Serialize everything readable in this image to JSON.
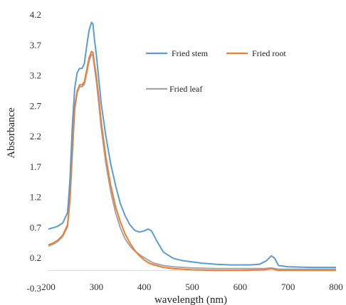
{
  "chart_data": {
    "type": "line",
    "title": "",
    "xlabel": "wavelength (nm)",
    "ylabel": "Absorbance",
    "xlim": [
      200,
      800
    ],
    "ylim": [
      -0.3,
      4.2
    ],
    "x_ticks": [
      200,
      300,
      400,
      500,
      600,
      700,
      800
    ],
    "y_ticks": [
      -0.3,
      0.2,
      0.7,
      1.2,
      1.7,
      2.2,
      2.7,
      3.2,
      3.7,
      4.2
    ],
    "x_tick_labels": [
      "200",
      "300",
      "400",
      "500",
      "600",
      "700",
      "800"
    ],
    "y_tick_labels": [
      "-0.3",
      "0.2",
      "0.7",
      "1.2",
      "1.7",
      "2.2",
      "2.7",
      "3.2",
      "3.7",
      "4.2"
    ],
    "grid": false,
    "legend_position": "top-right",
    "series": [
      {
        "name": "Fried stem",
        "color": "#5b9bd5",
        "points": [
          [
            200,
            0.68
          ],
          [
            210,
            0.7
          ],
          [
            220,
            0.73
          ],
          [
            230,
            0.78
          ],
          [
            240,
            0.95
          ],
          [
            245,
            1.5
          ],
          [
            250,
            2.4
          ],
          [
            255,
            3.0
          ],
          [
            260,
            3.25
          ],
          [
            265,
            3.32
          ],
          [
            270,
            3.32
          ],
          [
            275,
            3.4
          ],
          [
            280,
            3.7
          ],
          [
            285,
            3.95
          ],
          [
            290,
            4.08
          ],
          [
            293,
            4.05
          ],
          [
            296,
            3.8
          ],
          [
            300,
            3.55
          ],
          [
            305,
            3.15
          ],
          [
            310,
            2.75
          ],
          [
            320,
            2.2
          ],
          [
            330,
            1.75
          ],
          [
            340,
            1.4
          ],
          [
            350,
            1.1
          ],
          [
            360,
            0.9
          ],
          [
            370,
            0.75
          ],
          [
            380,
            0.66
          ],
          [
            390,
            0.63
          ],
          [
            400,
            0.65
          ],
          [
            408,
            0.68
          ],
          [
            415,
            0.65
          ],
          [
            425,
            0.5
          ],
          [
            440,
            0.3
          ],
          [
            460,
            0.2
          ],
          [
            480,
            0.16
          ],
          [
            500,
            0.14
          ],
          [
            520,
            0.12
          ],
          [
            550,
            0.1
          ],
          [
            580,
            0.09
          ],
          [
            600,
            0.09
          ],
          [
            620,
            0.09
          ],
          [
            640,
            0.1
          ],
          [
            655,
            0.16
          ],
          [
            665,
            0.24
          ],
          [
            672,
            0.2
          ],
          [
            680,
            0.08
          ],
          [
            700,
            0.06
          ],
          [
            750,
            0.05
          ],
          [
            800,
            0.05
          ]
        ]
      },
      {
        "name": "Fried root",
        "color": "#ed7d31",
        "points": [
          [
            200,
            0.42
          ],
          [
            210,
            0.45
          ],
          [
            220,
            0.5
          ],
          [
            230,
            0.58
          ],
          [
            240,
            0.75
          ],
          [
            245,
            1.2
          ],
          [
            250,
            2.0
          ],
          [
            255,
            2.7
          ],
          [
            260,
            2.95
          ],
          [
            265,
            3.05
          ],
          [
            270,
            3.05
          ],
          [
            275,
            3.1
          ],
          [
            280,
            3.3
          ],
          [
            285,
            3.5
          ],
          [
            290,
            3.6
          ],
          [
            293,
            3.58
          ],
          [
            296,
            3.4
          ],
          [
            300,
            3.2
          ],
          [
            305,
            2.85
          ],
          [
            310,
            2.45
          ],
          [
            320,
            1.85
          ],
          [
            330,
            1.4
          ],
          [
            340,
            1.05
          ],
          [
            350,
            0.8
          ],
          [
            360,
            0.6
          ],
          [
            370,
            0.45
          ],
          [
            380,
            0.33
          ],
          [
            390,
            0.24
          ],
          [
            400,
            0.17
          ],
          [
            410,
            0.12
          ],
          [
            420,
            0.09
          ],
          [
            440,
            0.05
          ],
          [
            460,
            0.03
          ],
          [
            480,
            0.02
          ],
          [
            500,
            0.01
          ],
          [
            550,
            0.0
          ],
          [
            600,
            0.0
          ],
          [
            650,
            0.01
          ],
          [
            665,
            0.03
          ],
          [
            680,
            0.0
          ],
          [
            700,
            0.0
          ],
          [
            800,
            0.0
          ]
        ]
      },
      {
        "name": "Fried leaf",
        "color": "#a5a5a5",
        "points": [
          [
            200,
            0.4
          ],
          [
            210,
            0.43
          ],
          [
            220,
            0.48
          ],
          [
            230,
            0.56
          ],
          [
            240,
            0.72
          ],
          [
            245,
            1.15
          ],
          [
            250,
            1.95
          ],
          [
            255,
            2.65
          ],
          [
            260,
            2.92
          ],
          [
            265,
            3.02
          ],
          [
            270,
            3.02
          ],
          [
            275,
            3.06
          ],
          [
            280,
            3.25
          ],
          [
            285,
            3.45
          ],
          [
            290,
            3.55
          ],
          [
            293,
            3.53
          ],
          [
            296,
            3.35
          ],
          [
            300,
            3.12
          ],
          [
            305,
            2.75
          ],
          [
            310,
            2.35
          ],
          [
            320,
            1.75
          ],
          [
            330,
            1.3
          ],
          [
            340,
            0.95
          ],
          [
            350,
            0.7
          ],
          [
            360,
            0.52
          ],
          [
            370,
            0.4
          ],
          [
            380,
            0.32
          ],
          [
            390,
            0.26
          ],
          [
            400,
            0.21
          ],
          [
            410,
            0.16
          ],
          [
            420,
            0.12
          ],
          [
            440,
            0.08
          ],
          [
            460,
            0.06
          ],
          [
            480,
            0.05
          ],
          [
            500,
            0.04
          ],
          [
            550,
            0.03
          ],
          [
            600,
            0.03
          ],
          [
            650,
            0.03
          ],
          [
            665,
            0.04
          ],
          [
            680,
            0.02
          ],
          [
            700,
            0.02
          ],
          [
            800,
            0.02
          ]
        ]
      }
    ]
  }
}
